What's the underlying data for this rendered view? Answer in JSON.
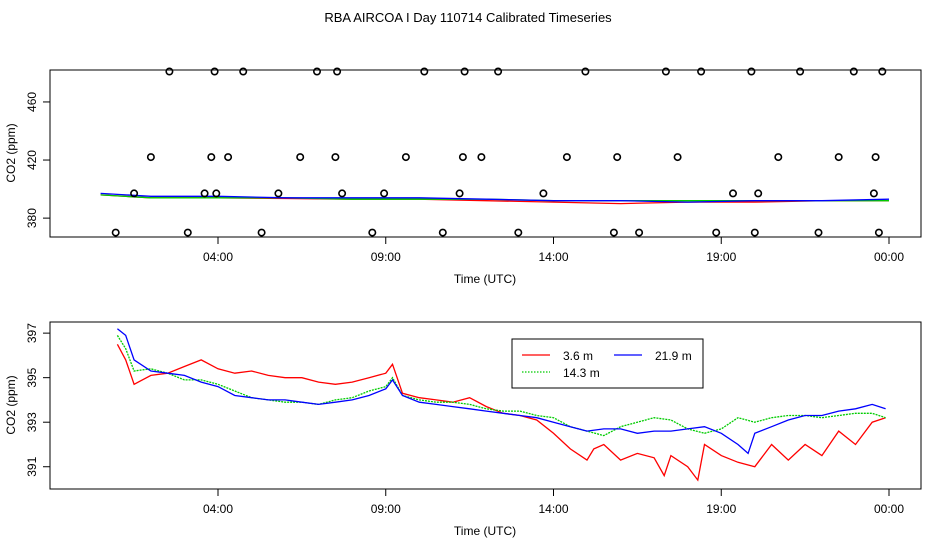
{
  "title": "RBA AIRCOA I  Day 110714  Calibrated Timeseries",
  "colors": {
    "s1": "#ff0000",
    "s2": "#00cc00",
    "s3": "#0000ff",
    "axis": "#000000"
  },
  "chart_data": [
    {
      "type": "line+scatter",
      "xlabel": "Time (UTC)",
      "ylabel": "CO2 (ppm)",
      "xlim": [
        0,
        24
      ],
      "ylim": [
        367,
        482
      ],
      "xticks": [
        {
          "value": 4,
          "label": "04:00"
        },
        {
          "value": 9,
          "label": "09:00"
        },
        {
          "value": 14,
          "label": "14:00"
        },
        {
          "value": 19,
          "label": "19:00"
        },
        {
          "value": 24,
          "label": "00:00"
        }
      ],
      "yticks": [
        {
          "value": 380,
          "label": "380"
        },
        {
          "value": 420,
          "label": "420"
        },
        {
          "value": 460,
          "label": "460"
        }
      ],
      "lines": [
        {
          "name": "3.6 m",
          "color": "#ff0000",
          "x": [
            0.5,
            2,
            4,
            6,
            8,
            10,
            12,
            14,
            16,
            18,
            20,
            22,
            24
          ],
          "y": [
            396,
            394,
            394,
            393.5,
            393,
            393,
            392,
            391,
            390,
            391,
            391,
            392,
            392
          ]
        },
        {
          "name": "14.3 m",
          "color": "#00cc00",
          "x": [
            0.5,
            2,
            4,
            6,
            8,
            10,
            12,
            14,
            16,
            18,
            20,
            22,
            24
          ],
          "y": [
            396,
            394,
            394,
            394,
            393,
            393,
            393,
            392,
            392,
            392,
            392,
            392,
            392
          ]
        },
        {
          "name": "21.9 m",
          "color": "#0000ff",
          "x": [
            0.5,
            2,
            4,
            6,
            8,
            10,
            12,
            14,
            16,
            18,
            20,
            22,
            24
          ],
          "y": [
            397,
            395,
            395,
            394,
            394,
            394,
            393,
            392,
            392,
            391,
            392,
            392,
            393
          ]
        }
      ],
      "points": {
        "x": [
          0.95,
          1.5,
          2,
          2.55,
          3.1,
          3.6,
          3.8,
          3.9,
          3.95,
          4.3,
          4.75,
          5.3,
          5.8,
          6.45,
          6.95,
          7.5,
          7.55,
          7.7,
          8.6,
          8.95,
          9.6,
          10.15,
          10.7,
          11.2,
          11.3,
          11.35,
          11.85,
          12.35,
          12.95,
          13.7,
          14.4,
          14.95,
          15.8,
          15.9,
          16.55,
          17.35,
          17.7,
          18.4,
          18.85,
          19.35,
          19.9,
          20,
          20.1,
          20.7,
          21.35,
          21.9,
          22.5,
          22.95,
          23.55,
          23.6,
          23.7,
          23.8
        ],
        "y": [
          370,
          397,
          422,
          481,
          370,
          397,
          422,
          481,
          397,
          422,
          481,
          370,
          397,
          422,
          481,
          422,
          481,
          397,
          370,
          397,
          422,
          481,
          370,
          397,
          422,
          481,
          422,
          481,
          370,
          397,
          422,
          481,
          370,
          422,
          370,
          481,
          422,
          481,
          370,
          397,
          481,
          370,
          397,
          422,
          481,
          370,
          422,
          481,
          397,
          422,
          370,
          481
        ]
      }
    },
    {
      "type": "line",
      "xlabel": "Time (UTC)",
      "ylabel": "CO2 (ppm)",
      "xlim": [
        0,
        24
      ],
      "ylim": [
        390,
        397.5
      ],
      "xticks": [
        {
          "value": 4,
          "label": "04:00"
        },
        {
          "value": 9,
          "label": "09:00"
        },
        {
          "value": 14,
          "label": "14:00"
        },
        {
          "value": 19,
          "label": "19:00"
        },
        {
          "value": 24,
          "label": "00:00"
        }
      ],
      "yticks": [
        {
          "value": 391,
          "label": "391"
        },
        {
          "value": 393,
          "label": "393"
        },
        {
          "value": 395,
          "label": "395"
        },
        {
          "value": 397,
          "label": "397"
        }
      ],
      "legend": {
        "placement": "top-center"
      },
      "series": [
        {
          "name": "3.6 m",
          "color": "#ff0000",
          "x": [
            1.0,
            1.25,
            1.5,
            2.0,
            2.5,
            3.0,
            3.5,
            4.0,
            4.5,
            5.0,
            5.5,
            6.0,
            6.5,
            7.0,
            7.5,
            8.0,
            8.5,
            9.0,
            9.2,
            9.5,
            10.0,
            10.5,
            11.0,
            11.5,
            12.0,
            12.5,
            13.0,
            13.5,
            14.0,
            14.5,
            15.0,
            15.2,
            15.5,
            16.0,
            16.5,
            17.0,
            17.3,
            17.5,
            18.0,
            18.3,
            18.5,
            19.0,
            19.5,
            20.0,
            20.5,
            21.0,
            21.5,
            22.0,
            22.5,
            23.0,
            23.5,
            23.9
          ],
          "y": [
            396.5,
            395.8,
            394.7,
            395.1,
            395.2,
            395.5,
            395.8,
            395.4,
            395.2,
            395.3,
            395.1,
            395.0,
            395.0,
            394.8,
            394.7,
            394.8,
            395.0,
            395.2,
            395.6,
            394.3,
            394.1,
            394.0,
            393.9,
            394.1,
            393.7,
            393.4,
            393.3,
            393.1,
            392.5,
            391.8,
            391.3,
            391.8,
            392.0,
            391.3,
            391.6,
            391.4,
            390.6,
            391.5,
            391.0,
            390.4,
            392.0,
            391.5,
            391.2,
            391.0,
            392.0,
            391.3,
            392.0,
            391.5,
            392.6,
            392.0,
            393.0,
            393.2
          ]
        },
        {
          "name": "14.3 m",
          "color": "#00cc00",
          "x": [
            1.0,
            1.25,
            1.5,
            2.0,
            2.5,
            3.0,
            3.5,
            4.0,
            4.5,
            5.0,
            5.5,
            6.0,
            6.5,
            7.0,
            7.5,
            8.0,
            8.5,
            9.0,
            9.2,
            9.5,
            10.0,
            10.5,
            11.0,
            11.5,
            12.0,
            12.5,
            13.0,
            13.5,
            14.0,
            14.5,
            15.0,
            15.5,
            16.0,
            16.5,
            17.0,
            17.5,
            18.0,
            18.5,
            19.0,
            19.5,
            20.0,
            20.5,
            21.0,
            21.5,
            22.0,
            22.5,
            23.0,
            23.5,
            23.9
          ],
          "y": [
            396.9,
            396.3,
            395.3,
            395.4,
            395.2,
            394.9,
            394.9,
            394.7,
            394.4,
            394.1,
            394.0,
            393.9,
            393.9,
            393.8,
            394.0,
            394.1,
            394.4,
            394.6,
            395.0,
            394.2,
            394.0,
            393.9,
            393.9,
            393.8,
            393.6,
            393.5,
            393.5,
            393.3,
            393.2,
            392.8,
            392.6,
            392.4,
            392.8,
            393.0,
            393.2,
            393.1,
            392.7,
            392.5,
            392.7,
            393.2,
            393.0,
            393.2,
            393.3,
            393.3,
            393.2,
            393.3,
            393.4,
            393.4,
            393.2
          ]
        },
        {
          "name": "21.9 m",
          "color": "#0000ff",
          "x": [
            1.0,
            1.25,
            1.5,
            2.0,
            2.5,
            3.0,
            3.5,
            4.0,
            4.5,
            5.0,
            5.5,
            6.0,
            6.5,
            7.0,
            7.5,
            8.0,
            8.5,
            9.0,
            9.2,
            9.5,
            10.0,
            10.5,
            11.0,
            11.5,
            12.0,
            12.5,
            13.0,
            13.5,
            14.0,
            14.5,
            15.0,
            15.5,
            16.0,
            16.5,
            17.0,
            17.5,
            18.0,
            18.5,
            19.0,
            19.5,
            19.8,
            20.0,
            20.5,
            21.0,
            21.5,
            22.0,
            22.5,
            23.0,
            23.5,
            23.9
          ],
          "y": [
            397.2,
            396.9,
            395.8,
            395.3,
            395.2,
            395.1,
            394.8,
            394.6,
            394.2,
            394.1,
            394.0,
            394.0,
            393.9,
            393.8,
            393.9,
            394.0,
            394.2,
            394.5,
            394.9,
            394.2,
            393.9,
            393.8,
            393.7,
            393.6,
            393.5,
            393.4,
            393.3,
            393.2,
            393.0,
            392.8,
            392.6,
            392.7,
            392.7,
            392.5,
            392.6,
            392.6,
            392.7,
            392.8,
            392.5,
            392.0,
            391.6,
            392.5,
            392.8,
            393.1,
            393.3,
            393.3,
            393.5,
            393.6,
            393.8,
            393.6
          ]
        }
      ]
    }
  ]
}
